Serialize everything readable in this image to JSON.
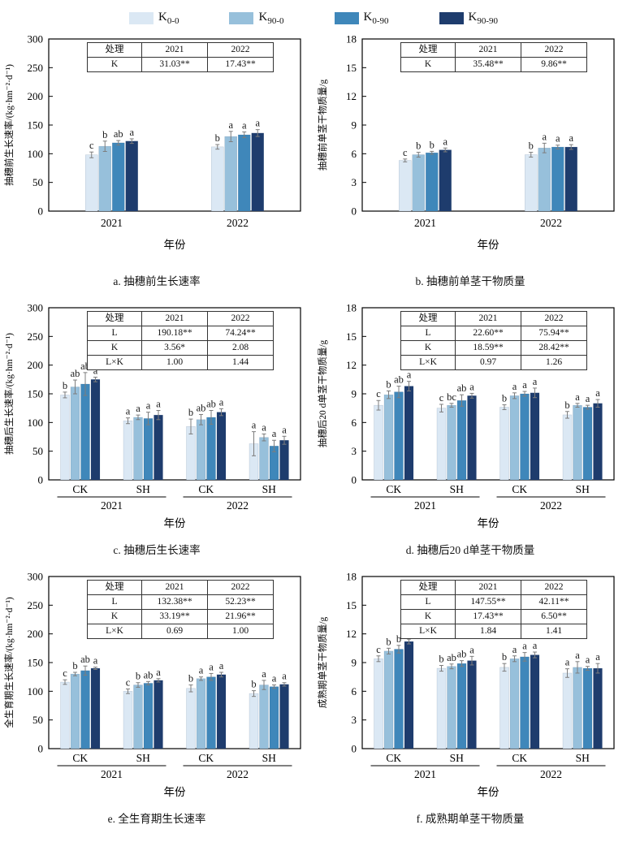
{
  "figure_title": "",
  "legend": {
    "items": [
      {
        "main": "K",
        "sub": "0-0",
        "color": "#dbe8f4"
      },
      {
        "main": "K",
        "sub": "90-0",
        "color": "#97c0db"
      },
      {
        "main": "K",
        "sub": "0-90",
        "color": "#3f87ba"
      },
      {
        "main": "K",
        "sub": "90-90",
        "color": "#1e3c6d"
      }
    ]
  },
  "colors": {
    "series": [
      "#dbe8f4",
      "#97c0db",
      "#3f87ba",
      "#1e3c6d"
    ],
    "axis": "#000000",
    "error_bar": "#7d7d7d",
    "letter": "#1a1a1a",
    "table_border": "#333333"
  },
  "chart_data": [
    {
      "type": "bar",
      "id": "a",
      "title": "a. 抽穗前生长速率",
      "ylabel": "抽穗前生长速率/(kg·hm⁻²·d⁻¹)",
      "xlabel": "年份",
      "ylim": [
        0,
        300
      ],
      "ytick_step": 50,
      "grid": false,
      "series_names": [
        "K0-0",
        "K90-0",
        "K0-90",
        "K90-90"
      ],
      "stat_table": {
        "header": [
          "处理",
          "2021",
          "2022"
        ],
        "rows": [
          [
            "K",
            "31.03**",
            "17.43**"
          ]
        ]
      },
      "groups": [
        {
          "year": "2021",
          "sub": null,
          "values": [
            98,
            113,
            119,
            122
          ],
          "errors": [
            5,
            9,
            4,
            4
          ],
          "letters": [
            "c",
            "b",
            "ab",
            "a"
          ]
        },
        {
          "year": "2022",
          "sub": null,
          "values": [
            112,
            130,
            133,
            136
          ],
          "errors": [
            4,
            9,
            5,
            6
          ],
          "letters": [
            "b",
            "a",
            "a",
            "a"
          ]
        }
      ]
    },
    {
      "type": "bar",
      "id": "b",
      "title": "b. 抽穗前单茎干物质量",
      "ylabel": "抽穗前单茎干物质量/g",
      "xlabel": "年份",
      "ylim": [
        0,
        18
      ],
      "ytick_step": 3,
      "grid": false,
      "series_names": [
        "K0-0",
        "K90-0",
        "K0-90",
        "K90-90"
      ],
      "stat_table": {
        "header": [
          "处理",
          "2021",
          "2022"
        ],
        "rows": [
          [
            "K",
            "35.48**",
            "9.86**"
          ]
        ]
      },
      "groups": [
        {
          "year": "2021",
          "sub": null,
          "values": [
            5.3,
            5.9,
            6.1,
            6.4
          ],
          "errors": [
            0.15,
            0.25,
            0.15,
            0.2
          ],
          "letters": [
            "c",
            "b",
            "b",
            "a"
          ]
        },
        {
          "year": "2022",
          "sub": null,
          "values": [
            5.9,
            6.6,
            6.7,
            6.7
          ],
          "errors": [
            0.25,
            0.5,
            0.2,
            0.25
          ],
          "letters": [
            "b",
            "a",
            "a",
            "a"
          ]
        }
      ]
    },
    {
      "type": "bar",
      "id": "c",
      "title": "c. 抽穗后生长速率",
      "ylabel": "抽穗后生长速率/(kg·hm⁻²·d⁻¹)",
      "xlabel": "年份",
      "ylim": [
        0,
        300
      ],
      "ytick_step": 50,
      "grid": false,
      "series_names": [
        "K0-0",
        "K90-0",
        "K0-90",
        "K90-90"
      ],
      "stat_table": {
        "header": [
          "处理",
          "2021",
          "2022"
        ],
        "rows": [
          [
            "L",
            "190.18**",
            "74.24**"
          ],
          [
            "K",
            "3.56*",
            "2.08"
          ],
          [
            "L×K",
            "1.00",
            "1.44"
          ]
        ]
      },
      "groups": [
        {
          "year": "2021",
          "sub": "CK",
          "values": [
            148,
            162,
            167,
            175
          ],
          "errors": [
            5,
            12,
            20,
            4
          ],
          "letters": [
            "b",
            "ab",
            "ab",
            "a"
          ]
        },
        {
          "year": "2021",
          "sub": "SH",
          "values": [
            103,
            109,
            107,
            113
          ],
          "errors": [
            5,
            4,
            11,
            8
          ],
          "letters": [
            "a",
            "a",
            "a",
            "a"
          ]
        },
        {
          "year": "2022",
          "sub": "CK",
          "values": [
            93,
            105,
            109,
            118
          ],
          "errors": [
            13,
            9,
            12,
            6
          ],
          "letters": [
            "b",
            "ab",
            "ab",
            "a"
          ]
        },
        {
          "year": "2022",
          "sub": "SH",
          "values": [
            63,
            74,
            59,
            69
          ],
          "errors": [
            21,
            6,
            10,
            7
          ],
          "letters": [
            "a",
            "a",
            "a",
            "a"
          ]
        }
      ]
    },
    {
      "type": "bar",
      "id": "d",
      "title": "d. 抽穗后20 d单茎干物质量",
      "ylabel": "抽穗后20 d单茎干物质量/g",
      "xlabel": "年份",
      "ylim": [
        0,
        18
      ],
      "ytick_step": 3,
      "grid": false,
      "series_names": [
        "K0-0",
        "K90-0",
        "K0-90",
        "K90-90"
      ],
      "stat_table": {
        "header": [
          "处理",
          "2021",
          "2022"
        ],
        "rows": [
          [
            "L",
            "22.60**",
            "75.94**"
          ],
          [
            "K",
            "18.59**",
            "28.42**"
          ],
          [
            "L×K",
            "0.97",
            "1.26"
          ]
        ]
      },
      "groups": [
        {
          "year": "2021",
          "sub": "CK",
          "values": [
            7.8,
            8.9,
            9.2,
            9.8
          ],
          "errors": [
            0.5,
            0.4,
            0.6,
            0.5
          ],
          "letters": [
            "c",
            "b",
            "ab",
            "a"
          ]
        },
        {
          "year": "2021",
          "sub": "SH",
          "values": [
            7.5,
            7.8,
            8.3,
            8.8
          ],
          "errors": [
            0.4,
            0.2,
            0.6,
            0.25
          ],
          "letters": [
            "c",
            "bc",
            "ab",
            "a"
          ]
        },
        {
          "year": "2022",
          "sub": "CK",
          "values": [
            7.6,
            8.8,
            9.0,
            9.1
          ],
          "errors": [
            0.25,
            0.3,
            0.25,
            0.5
          ],
          "letters": [
            "b",
            "a",
            "a",
            "a"
          ]
        },
        {
          "year": "2022",
          "sub": "SH",
          "values": [
            6.8,
            7.8,
            7.6,
            8.0
          ],
          "errors": [
            0.35,
            0.2,
            0.2,
            0.4
          ],
          "letters": [
            "b",
            "a",
            "a",
            "a"
          ]
        }
      ]
    },
    {
      "type": "bar",
      "id": "e",
      "title": "e. 全生育期生长速率",
      "ylabel": "全生育期生长速率/(kg·hm⁻²·d⁻¹)",
      "xlabel": "年份",
      "ylim": [
        0,
        300
      ],
      "ytick_step": 50,
      "grid": false,
      "series_names": [
        "K0-0",
        "K90-0",
        "K0-90",
        "K90-90"
      ],
      "stat_table": {
        "header": [
          "处理",
          "2021",
          "2022"
        ],
        "rows": [
          [
            "L",
            "132.38**",
            "52.23**"
          ],
          [
            "K",
            "33.19**",
            "21.96**"
          ],
          [
            "L×K",
            "0.69",
            "1.00"
          ]
        ]
      },
      "groups": [
        {
          "year": "2021",
          "sub": "CK",
          "values": [
            116,
            130,
            136,
            140
          ],
          "errors": [
            4,
            3,
            8,
            2
          ],
          "letters": [
            "c",
            "b",
            "ab",
            "a"
          ]
        },
        {
          "year": "2021",
          "sub": "SH",
          "values": [
            100,
            111,
            114,
            119
          ],
          "errors": [
            4,
            4,
            3,
            3
          ],
          "letters": [
            "c",
            "b",
            "ab",
            "a"
          ]
        },
        {
          "year": "2022",
          "sub": "CK",
          "values": [
            105,
            122,
            125,
            129
          ],
          "errors": [
            6,
            3,
            6,
            4
          ],
          "letters": [
            "b",
            "a",
            "a",
            "a"
          ]
        },
        {
          "year": "2022",
          "sub": "SH",
          "values": [
            96,
            111,
            108,
            112
          ],
          "errors": [
            5,
            8,
            3,
            3
          ],
          "letters": [
            "b",
            "a",
            "a",
            "a"
          ]
        }
      ]
    },
    {
      "type": "bar",
      "id": "f",
      "title": "f. 成熟期单茎干物质量",
      "ylabel": "成熟期单茎干物质量/g",
      "xlabel": "年份",
      "ylim": [
        0,
        18
      ],
      "ytick_step": 3,
      "grid": false,
      "series_names": [
        "K0-0",
        "K90-0",
        "K0-90",
        "K90-90"
      ],
      "stat_table": {
        "header": [
          "处理",
          "2021",
          "2022"
        ],
        "rows": [
          [
            "L",
            "147.55**",
            "42.11**"
          ],
          [
            "K",
            "17.43**",
            "6.50**"
          ],
          [
            "L×K",
            "1.84",
            "1.41"
          ]
        ]
      },
      "groups": [
        {
          "year": "2021",
          "sub": "CK",
          "values": [
            9.4,
            10.2,
            10.4,
            11.2
          ],
          "errors": [
            0.3,
            0.3,
            0.4,
            0.25
          ],
          "letters": [
            "c",
            "b",
            "b",
            "a"
          ]
        },
        {
          "year": "2021",
          "sub": "SH",
          "values": [
            8.4,
            8.6,
            8.9,
            9.2
          ],
          "errors": [
            0.3,
            0.25,
            0.3,
            0.45
          ],
          "letters": [
            "b",
            "ab",
            "ab",
            "a"
          ]
        },
        {
          "year": "2022",
          "sub": "CK",
          "values": [
            8.5,
            9.4,
            9.6,
            9.8
          ],
          "errors": [
            0.4,
            0.3,
            0.45,
            0.3
          ],
          "letters": [
            "b",
            "a",
            "a",
            "a"
          ]
        },
        {
          "year": "2022",
          "sub": "SH",
          "values": [
            7.9,
            8.5,
            8.4,
            8.4
          ],
          "errors": [
            0.45,
            0.6,
            0.2,
            0.5
          ],
          "letters": [
            "a",
            "a",
            "a",
            "a"
          ]
        }
      ]
    }
  ]
}
